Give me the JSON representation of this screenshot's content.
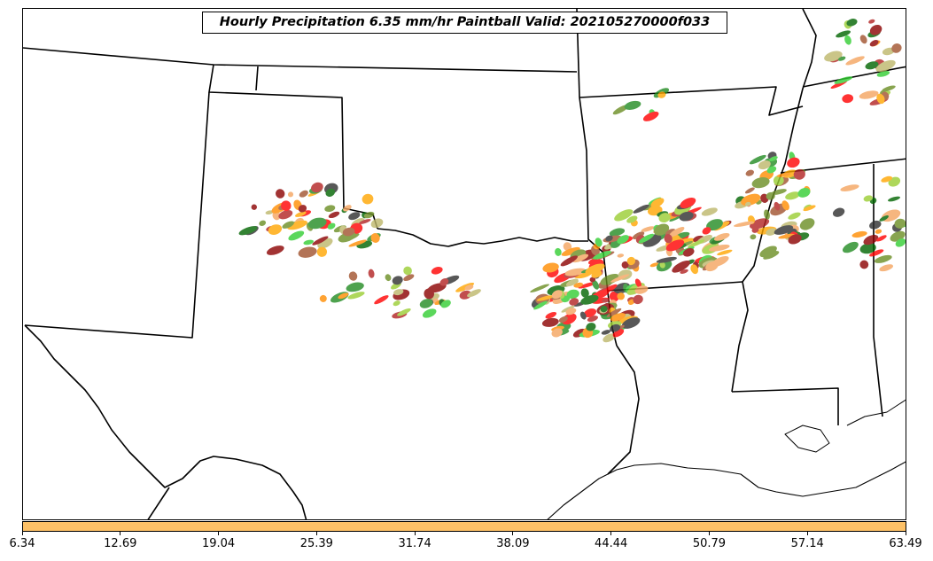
{
  "title": "Hourly Precipitation 6.35 mm/hr Paintball Valid: 202105270000f033",
  "colorbar": {
    "color": "#FDC167",
    "tick_labels": [
      "6.34",
      "12.69",
      "19.04",
      "25.39",
      "31.74",
      "38.09",
      "44.44",
      "50.79",
      "57.14",
      "63.49"
    ]
  },
  "map": {
    "boundary_color": "#000000",
    "member_colors": [
      "#8B0000",
      "#B22222",
      "#FF0000",
      "#FF8C00",
      "#F4A460",
      "#FFA500",
      "#9ACD32",
      "#6B8E23",
      "#32CD32",
      "#006400",
      "#228B22",
      "#2F2F2F",
      "#A0522D",
      "#BDB76B"
    ]
  }
}
